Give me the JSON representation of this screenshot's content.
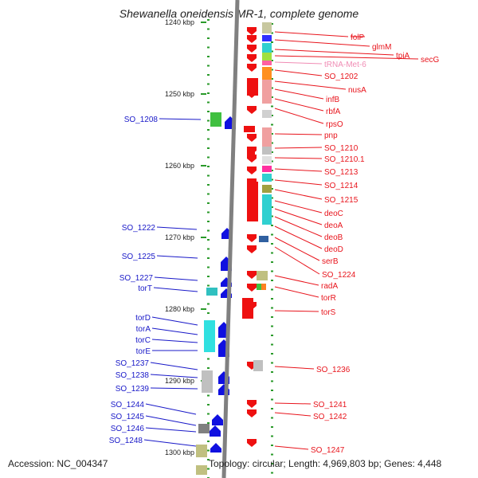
{
  "title": "Shewanella oneidensis MR-1, complete genome",
  "footer": {
    "accession": "Accession: NC_004347",
    "topology": "Topology: circular; Length: 4,969,803 bp; Genes: 4,448"
  },
  "scale_ticks": [
    {
      "label": "1240 kbp",
      "pos": 1240
    },
    {
      "label": "1250 kbp",
      "pos": 1250
    },
    {
      "label": "1260 kbp",
      "pos": 1260
    },
    {
      "label": "1270 kbp",
      "pos": 1270
    },
    {
      "label": "1280 kbp",
      "pos": 1280
    },
    {
      "label": "1290 kbp",
      "pos": 1290
    },
    {
      "label": "1300 kbp",
      "pos": 1300
    }
  ],
  "colors": {
    "right_label": "#e8141c",
    "left_label": "#1818c8",
    "trna_label": "#f08cb4",
    "forward_gene": "#1010e0",
    "reverse_gene": "#ee1010",
    "backbone": "#808080",
    "tick": "#2a9a2a"
  },
  "right_labels": [
    "folP",
    "glmM",
    "tpiA",
    "secG",
    "tRNA-Met-6",
    "SO_1202",
    "nusA",
    "infB",
    "rbfA",
    "rpsO",
    "pnp",
    "SO_1210",
    "SO_1210.1",
    "SO_1213",
    "SO_1214",
    "SO_1215",
    "deoC",
    "deoA",
    "deoB",
    "deoD",
    "serB",
    "SO_1224",
    "radA",
    "torR",
    "torS",
    "SO_1236",
    "SO_1241",
    "SO_1242",
    "SO_1247"
  ],
  "left_labels": [
    "SO_1208",
    "SO_1222",
    "SO_1225",
    "SO_1227",
    "torT",
    "torD",
    "torA",
    "torC",
    "torE",
    "SO_1237",
    "SO_1238",
    "SO_1239",
    "SO_1244",
    "SO_1245",
    "SO_1246",
    "SO_1248"
  ]
}
